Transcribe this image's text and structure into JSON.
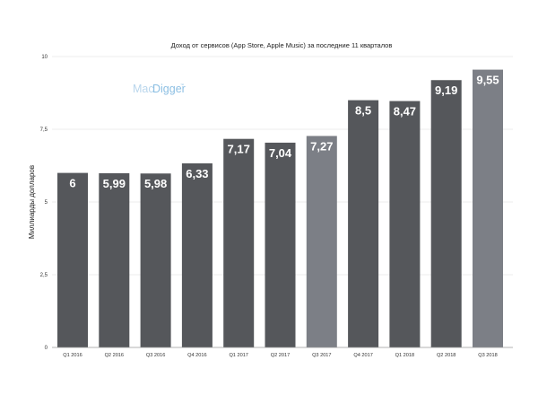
{
  "watermark": {
    "part1": "Mac",
    "part2": "Digger",
    "tm": "™"
  },
  "colors": {
    "bar": "#55575b",
    "bar_highlight": "#7c7f86",
    "grid": "#dcdcdc",
    "label": "#ffffff"
  },
  "chart_data": {
    "type": "bar",
    "title": "Доход от сервисов (App Store, Apple Music) за последние 11 кварталов",
    "xlabel": "",
    "ylabel": "Миллиарды долларов",
    "ylim": [
      0,
      10
    ],
    "yticks": [
      0,
      2.5,
      5,
      7.5,
      10
    ],
    "ytick_labels": [
      "0",
      "2,5",
      "5",
      "7,5",
      "10"
    ],
    "grid": true,
    "categories": [
      "Q1 2016",
      "Q2 2016",
      "Q3 2016",
      "Q4 2016",
      "Q1 2017",
      "Q2 2017",
      "Q3 2017",
      "Q4 2017",
      "Q1 2018",
      "Q2 2018",
      "Q3 2018"
    ],
    "values": [
      6,
      5.99,
      5.98,
      6.33,
      7.17,
      7.04,
      7.27,
      8.5,
      8.47,
      9.19,
      9.55
    ],
    "data_labels": [
      "6",
      "5,99",
      "5,98",
      "6,33",
      "7,17",
      "7,04",
      "7,27",
      "8,5",
      "8,47",
      "9,19",
      "9,55"
    ],
    "highlighted": [
      "Q3 2017",
      "Q3 2018"
    ]
  }
}
